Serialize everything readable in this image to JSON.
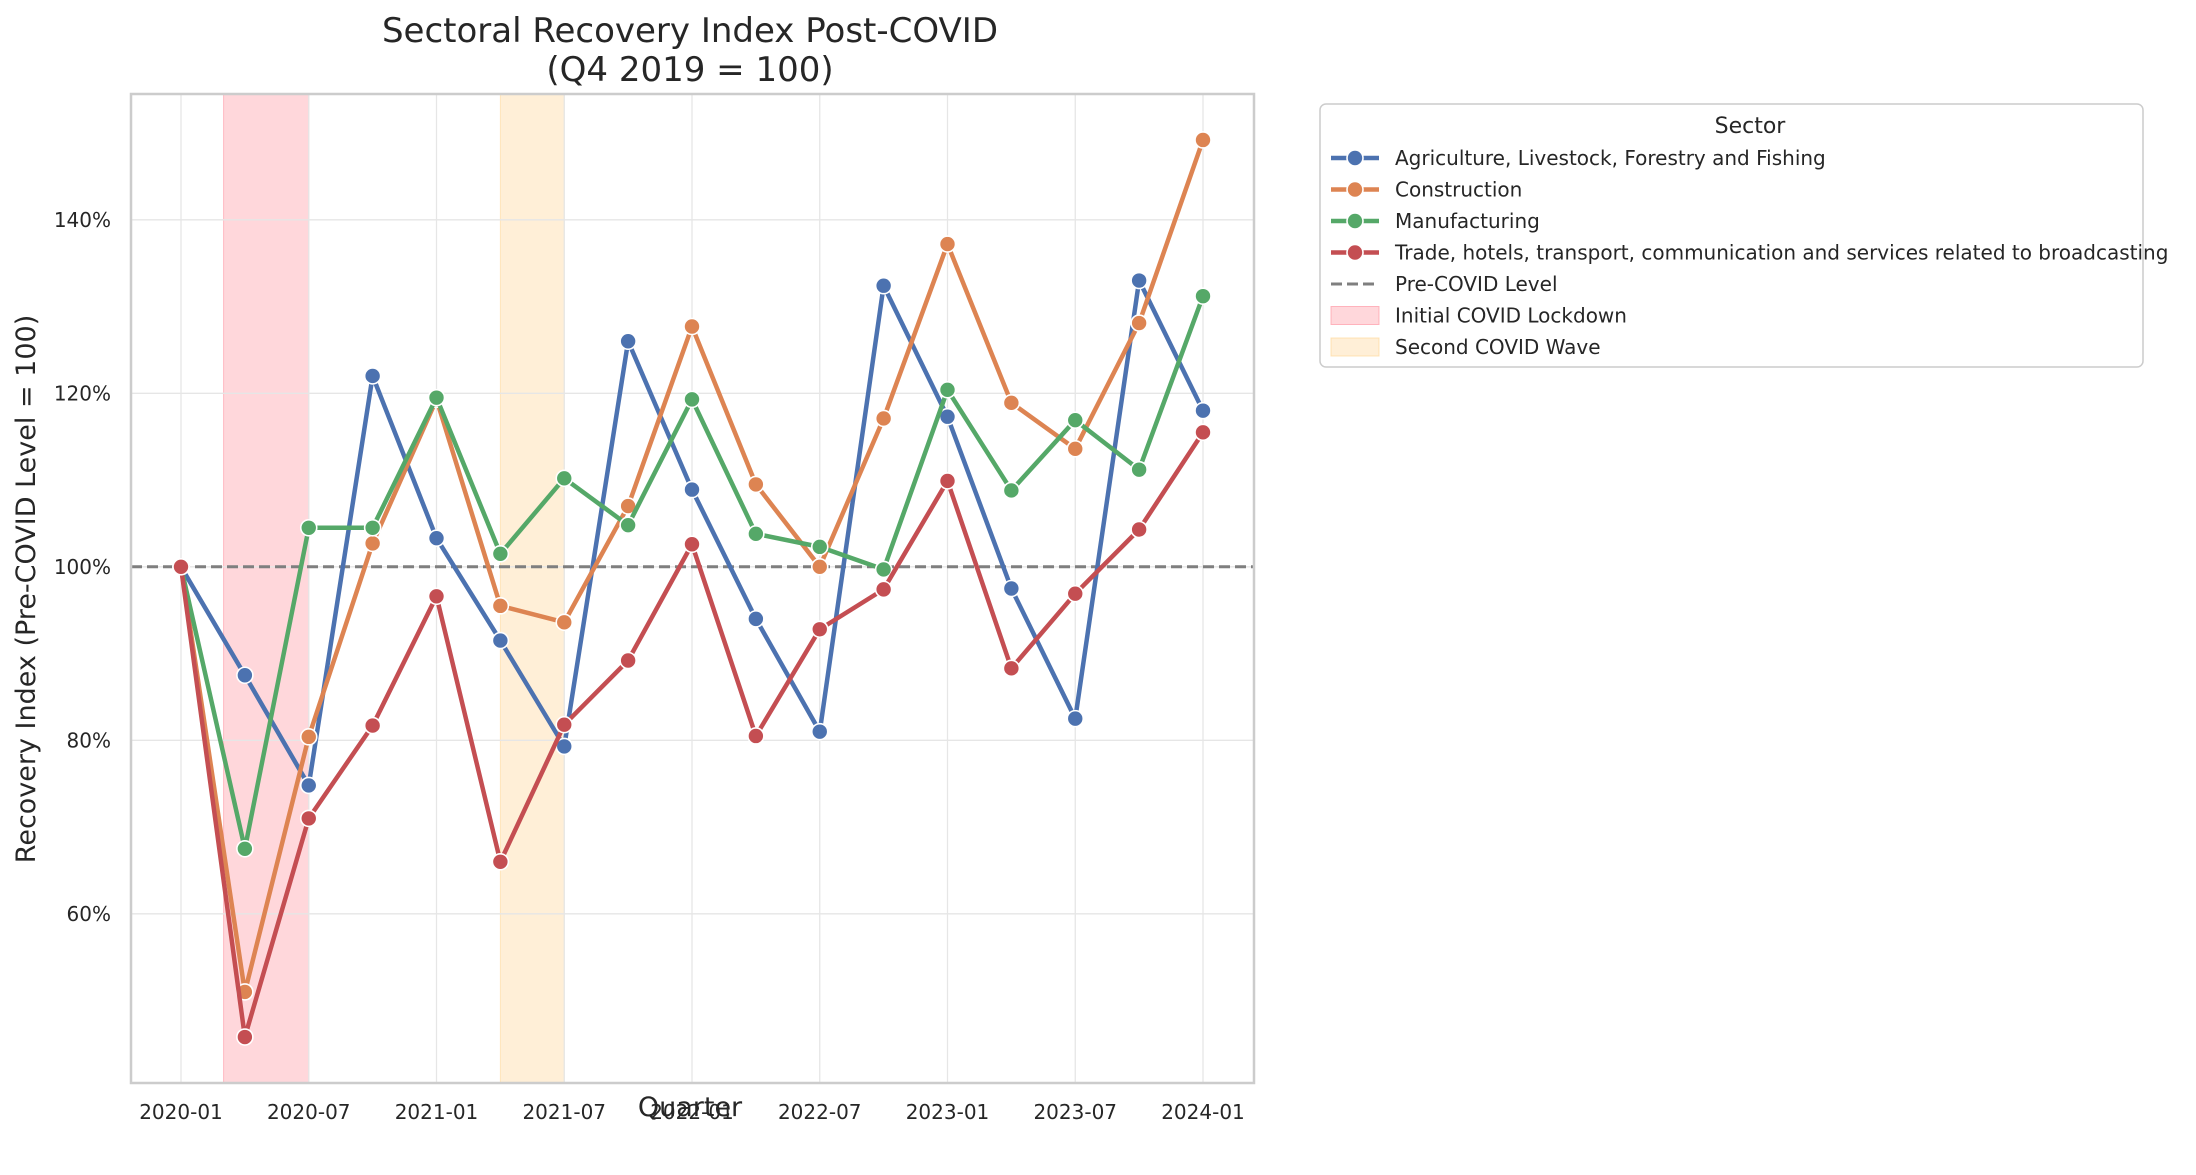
{
  "chart_data": {
    "type": "line",
    "title": "Sectoral Recovery Index Post-COVID\n(Q4 2019 = 100)",
    "title_lines": [
      "Sectoral Recovery Index Post-COVID",
      "(Q4 2019 = 100)"
    ],
    "xlabel": "Quarter",
    "ylabel": "Recovery Index (Pre-COVID Level = 100)",
    "x": [
      "2020-01",
      "2020-04",
      "2020-07",
      "2020-10",
      "2021-01",
      "2021-04",
      "2021-07",
      "2021-10",
      "2022-01",
      "2022-04",
      "2022-07",
      "2022-10",
      "2023-01",
      "2023-04",
      "2023-07",
      "2023-10",
      "2024-01"
    ],
    "x_ticks": [
      "2020-01",
      "2020-07",
      "2021-01",
      "2021-07",
      "2022-01",
      "2022-07",
      "2023-01",
      "2023-07",
      "2024-01"
    ],
    "y_ticks": [
      60,
      80,
      100,
      120,
      140
    ],
    "y_tick_labels": [
      "60%",
      "80%",
      "100%",
      "120%",
      "140%"
    ],
    "ylim": [
      40.5,
      154.5
    ],
    "grid": true,
    "legend_title": "Sector",
    "legend_position": "outside-right",
    "series": [
      {
        "name": "Agriculture, Livestock, Forestry and Fishing",
        "color": "#4c72b0",
        "values": [
          100,
          87.5,
          74.8,
          122.0,
          103.3,
          91.5,
          79.3,
          126.0,
          108.9,
          94.0,
          81.0,
          132.4,
          117.3,
          97.5,
          82.5,
          133.0,
          118.0
        ]
      },
      {
        "name": "Construction",
        "color": "#dd8452",
        "values": [
          100,
          51.0,
          80.4,
          102.7,
          119.3,
          95.5,
          93.6,
          107.0,
          127.7,
          109.5,
          100.0,
          117.1,
          137.2,
          118.9,
          113.6,
          128.1,
          149.2
        ]
      },
      {
        "name": "Manufacturing",
        "color": "#55a868",
        "values": [
          100,
          67.5,
          104.5,
          104.5,
          119.5,
          101.5,
          110.2,
          104.8,
          119.3,
          103.8,
          102.3,
          99.7,
          120.4,
          108.8,
          116.9,
          111.2,
          131.2
        ]
      },
      {
        "name": "Trade, hotels, transport, communication and services related to broadcasting",
        "color": "#c44e52",
        "values": [
          100,
          45.8,
          71.0,
          81.7,
          96.6,
          66.0,
          81.8,
          89.2,
          102.6,
          80.5,
          92.8,
          97.4,
          109.9,
          88.3,
          96.9,
          104.3,
          115.5
        ]
      }
    ],
    "reference_line": {
      "name": "Pre-COVID Level",
      "y": 100,
      "color": "#7f7f7f",
      "style": "dashed"
    },
    "shaded_regions": [
      {
        "name": "Initial COVID Lockdown",
        "x_start": "2020-03",
        "x_end": "2020-07",
        "color": "#ff9aa6"
      },
      {
        "name": "Second COVID Wave",
        "x_start": "2021-04",
        "x_end": "2021-07",
        "color": "#ffd89c"
      }
    ]
  }
}
